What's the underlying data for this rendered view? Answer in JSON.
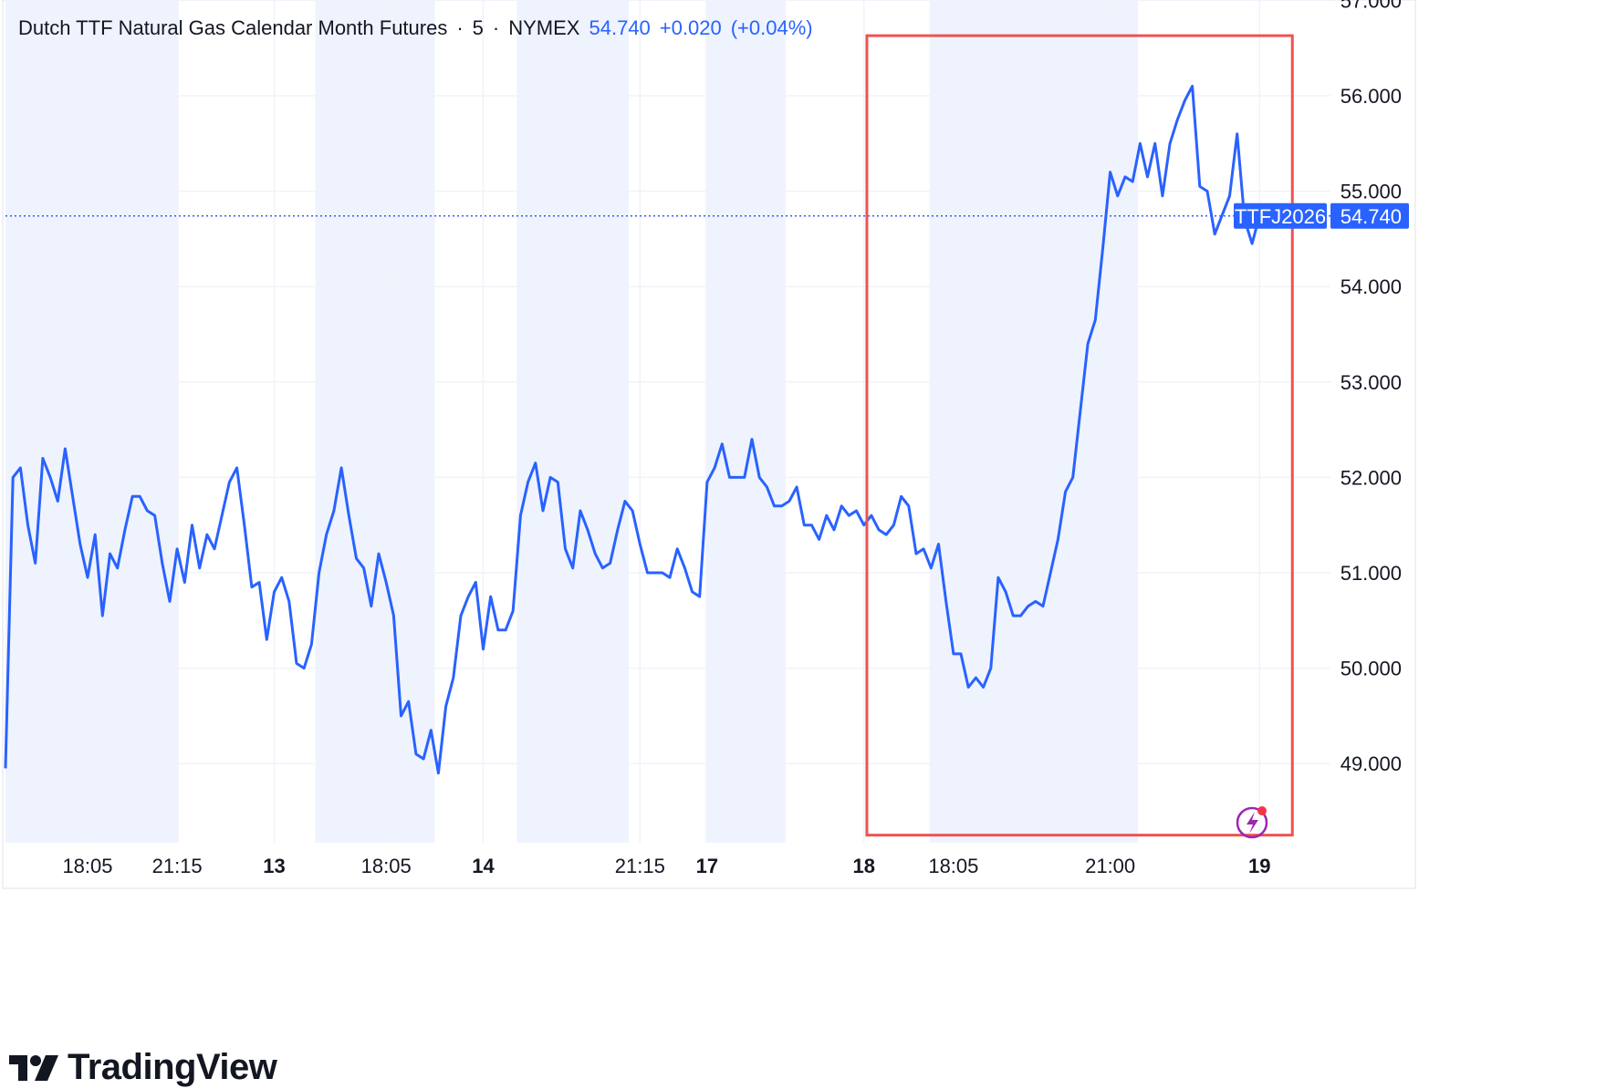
{
  "header": {
    "title": "Dutch TTF Natural Gas Calendar Month Futures",
    "interval": "5",
    "exchange": "NYMEX",
    "last_price": "54.740",
    "change": "+0.020",
    "change_pct": "(+0.04%)"
  },
  "labels": {
    "symbol_tag": "TTFJ2026",
    "price_tag": "54.740"
  },
  "brand": {
    "name": "TradingView"
  },
  "colors": {
    "line": "#2962ff",
    "session_shade": "#eef3fe",
    "highlight_box": "#f05252",
    "grid": "#f0f3fa",
    "text": "#131722"
  },
  "chart_data": {
    "type": "line",
    "title": "Dutch TTF Natural Gas Calendar Month Futures",
    "xlabel": "",
    "ylabel": "",
    "ylim": [
      48.2,
      57.0
    ],
    "grid": true,
    "legend": "none",
    "yticks": [
      "57.000",
      "56.000",
      "55.000",
      "54.000",
      "53.000",
      "52.000",
      "51.000",
      "50.000",
      "49.000"
    ],
    "xticks": [
      {
        "i": 11,
        "label": "18:05",
        "bold": false
      },
      {
        "i": 23,
        "label": "21:15",
        "bold": false
      },
      {
        "i": 36,
        "label": "13",
        "bold": true
      },
      {
        "i": 51,
        "label": "18:05",
        "bold": false
      },
      {
        "i": 64,
        "label": "14",
        "bold": true
      },
      {
        "i": 85,
        "label": "21:15",
        "bold": false
      },
      {
        "i": 94,
        "label": "17",
        "bold": true
      },
      {
        "i": 115,
        "label": "18",
        "bold": true
      },
      {
        "i": 127,
        "label": "18:05",
        "bold": false
      },
      {
        "i": 148,
        "label": "21:00",
        "bold": false
      },
      {
        "i": 168,
        "label": "19",
        "bold": true
      }
    ],
    "session_bands": [
      [
        0,
        23.2
      ],
      [
        41.5,
        57.5
      ],
      [
        68.5,
        83.5
      ],
      [
        93.8,
        104.5
      ],
      [
        123.8,
        151.7
      ]
    ],
    "highlight": {
      "x_from": 115.4,
      "x_to": 172.4,
      "y_from": 48.25,
      "y_to": 56.63
    },
    "last_value": 54.74,
    "series": [
      {
        "values": [
          48.95,
          52.0,
          52.1,
          51.5,
          51.1,
          52.2,
          52.0,
          51.75,
          52.3,
          51.8,
          51.3,
          50.95,
          51.4,
          50.55,
          51.2,
          51.05,
          51.45,
          51.8,
          51.8,
          51.65,
          51.6,
          51.1,
          50.7,
          51.25,
          50.9,
          51.5,
          51.05,
          51.4,
          51.25,
          51.6,
          51.95,
          52.1,
          51.5,
          50.85,
          50.9,
          50.3,
          50.8,
          50.95,
          50.7,
          50.05,
          50.0,
          50.25,
          51.0,
          51.4,
          51.65,
          52.1,
          51.6,
          51.15,
          51.05,
          50.65,
          51.2,
          50.9,
          50.55,
          49.5,
          49.65,
          49.1,
          49.05,
          49.35,
          48.9,
          49.6,
          49.9,
          50.55,
          50.75,
          50.9,
          50.2,
          50.75,
          50.4,
          50.4,
          50.6,
          51.6,
          51.95,
          52.15,
          51.65,
          52.0,
          51.95,
          51.25,
          51.05,
          51.65,
          51.45,
          51.2,
          51.05,
          51.1,
          51.45,
          51.75,
          51.65,
          51.3,
          51.0,
          51.0,
          51.0,
          50.95,
          51.25,
          51.05,
          50.8,
          50.75,
          51.95,
          52.1,
          52.35,
          52.0,
          52.0,
          52.0,
          52.4,
          52.0,
          51.9,
          51.7,
          51.7,
          51.75,
          51.9,
          51.5,
          51.5,
          51.35,
          51.6,
          51.45,
          51.7,
          51.6,
          51.65,
          51.5,
          51.6,
          51.45,
          51.4,
          51.5,
          51.8,
          51.7,
          51.2,
          51.25,
          51.05,
          51.3,
          50.7,
          50.15,
          50.15,
          49.8,
          49.9,
          49.8,
          50.0,
          50.95,
          50.8,
          50.55,
          50.55,
          50.65,
          50.7,
          50.65,
          51.0,
          51.35,
          51.85,
          52.0,
          52.7,
          53.4,
          53.65,
          54.4,
          55.2,
          54.95,
          55.15,
          55.1,
          55.5,
          55.15,
          55.5,
          54.95,
          55.5,
          55.75,
          55.95,
          56.1,
          55.05,
          55.0,
          54.55,
          54.75,
          54.95,
          55.6,
          54.7,
          54.45,
          54.74
        ]
      }
    ]
  }
}
